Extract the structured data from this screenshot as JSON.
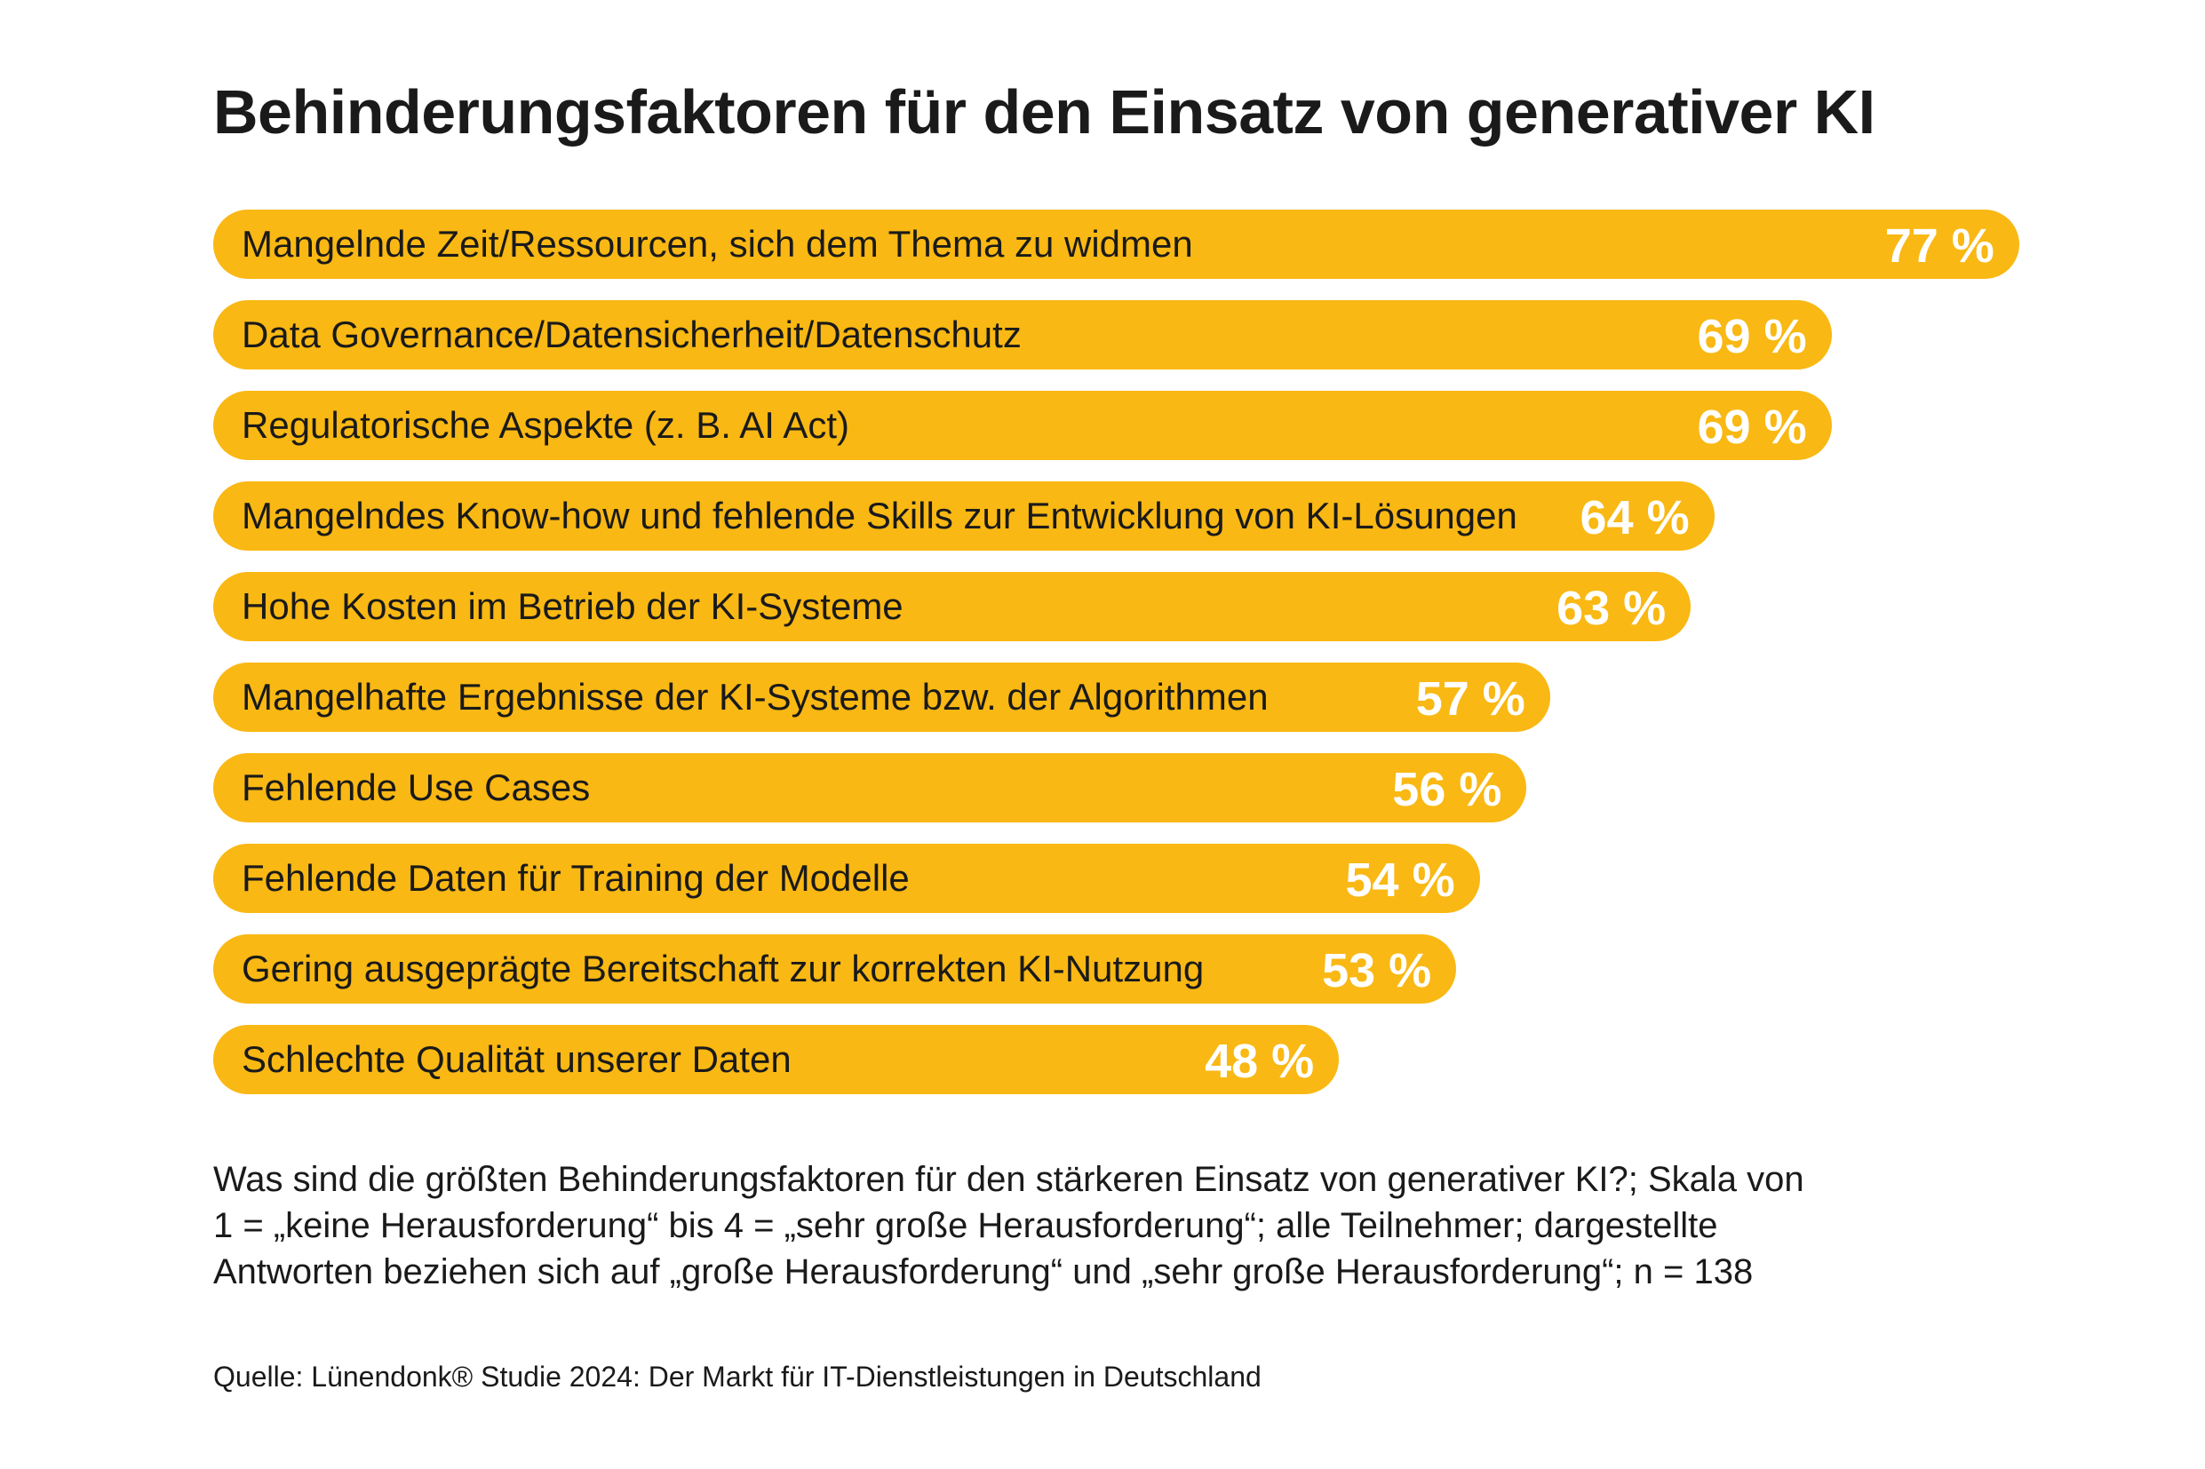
{
  "title": "Behinderungsfaktoren für den Einsatz von generativer KI",
  "footnote_lines": [
    "Was sind die größten Behinderungsfaktoren für den stärkeren Einsatz von generativer KI?; Skala von",
    "1 = „keine Herausforderung“ bis 4 = „sehr große Herausforderung“; alle Teilnehmer; dargestellte",
    "Antworten beziehen sich auf „große Herausforderung“ und „sehr große Herausforderung“; n = 138"
  ],
  "source": "Quelle: Lünendonk® Studie 2024: Der Markt für IT-Dienstleistungen in Deutschland",
  "colors": {
    "bar": "#f9b813",
    "value_text": "#ffffff",
    "label_text": "#1a1a1a"
  },
  "chart_data": {
    "type": "bar",
    "orientation": "horizontal",
    "title": "Behinderungsfaktoren für den Einsatz von generativer KI",
    "categories": [
      "Mangelnde Zeit/Ressourcen, sich dem Thema zu widmen",
      "Data Governance/Datensicherheit/Datenschutz",
      "Regulatorische Aspekte (z. B. AI Act)",
      "Mangelndes Know-how und fehlende Skills zur Entwicklung von KI-Lösungen",
      "Hohe Kosten im Betrieb der KI-Systeme",
      "Mangelhafte Ergebnisse der KI-Systeme bzw. der Algorithmen",
      "Fehlende Use Cases",
      "Fehlende Daten für Training der Modelle",
      "Gering ausgeprägte Bereitschaft zur korrekten KI-Nutzung",
      "Schlechte Qualität unserer Daten"
    ],
    "values": [
      77,
      69,
      69,
      64,
      63,
      57,
      56,
      54,
      53,
      48
    ],
    "value_labels": [
      "77 %",
      "69 %",
      "69 %",
      "64 %",
      "63 %",
      "57 %",
      "56 %",
      "54 %",
      "53 %",
      "48 %"
    ],
    "unit": "%",
    "grid": false,
    "legend": "none"
  }
}
